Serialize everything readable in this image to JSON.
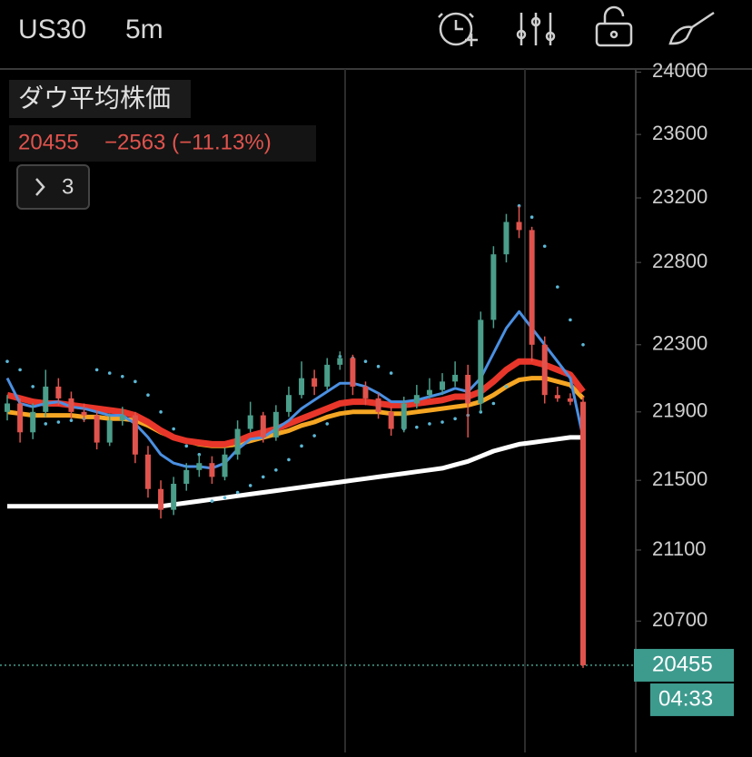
{
  "header": {
    "symbol": "US30",
    "interval": "5m"
  },
  "legend": {
    "name": "ダウ平均株価",
    "last": "20455",
    "change": "−2563 (−11.13%)"
  },
  "button": {
    "label": "3"
  },
  "chart_data": {
    "type": "candlestick",
    "log_scale": true,
    "ylim": [
      19980,
      24020
    ],
    "yticks": [
      20700,
      21100,
      21500,
      21900,
      22300,
      22800,
      23200,
      23600,
      24000
    ],
    "up_color": "#4a9e8a",
    "down_color": "#e0534d",
    "candles": [
      [
        21900,
        22000,
        21850,
        21950
      ],
      [
        21950,
        21980,
        21720,
        21780
      ],
      [
        21780,
        21950,
        21740,
        21900
      ],
      [
        21900,
        22150,
        21870,
        22050
      ],
      [
        22050,
        22100,
        21940,
        21980
      ],
      [
        21980,
        22020,
        21860,
        21900
      ],
      [
        21900,
        21950,
        21840,
        21880
      ],
      [
        21880,
        21910,
        21680,
        21720
      ],
      [
        21720,
        21890,
        21700,
        21850
      ],
      [
        21850,
        21930,
        21820,
        21880
      ],
      [
        21880,
        21900,
        21600,
        21650
      ],
      [
        21650,
        21700,
        21400,
        21450
      ],
      [
        21450,
        21500,
        21280,
        21330
      ],
      [
        21330,
        21520,
        21300,
        21480
      ],
      [
        21480,
        21600,
        21440,
        21560
      ],
      [
        21560,
        21650,
        21520,
        21600
      ],
      [
        21600,
        21640,
        21480,
        21520
      ],
      [
        21520,
        21690,
        21500,
        21650
      ],
      [
        21650,
        21850,
        21620,
        21800
      ],
      [
        21800,
        21960,
        21780,
        21880
      ],
      [
        21880,
        21900,
        21720,
        21750
      ],
      [
        21750,
        21940,
        21730,
        21900
      ],
      [
        21900,
        22050,
        21870,
        22000
      ],
      [
        22000,
        22200,
        21980,
        22100
      ],
      [
        22100,
        22150,
        22000,
        22050
      ],
      [
        22050,
        22220,
        22030,
        22180
      ],
      [
        22180,
        22260,
        22150,
        22220
      ],
      [
        22220,
        22240,
        22000,
        22050
      ],
      [
        22050,
        22080,
        21940,
        21980
      ],
      [
        21980,
        22010,
        21860,
        21900
      ],
      [
        21900,
        21930,
        21760,
        21800
      ],
      [
        21800,
        21990,
        21780,
        21950
      ],
      [
        21950,
        22060,
        21920,
        22000
      ],
      [
        22000,
        22100,
        21980,
        22030
      ],
      [
        22030,
        22130,
        22000,
        22080
      ],
      [
        22080,
        22200,
        22050,
        22120
      ],
      [
        22120,
        22180,
        21750,
        21950
      ],
      [
        21950,
        22500,
        21900,
        22450
      ],
      [
        22450,
        22900,
        22400,
        22850
      ],
      [
        22850,
        23100,
        22800,
        23050
      ],
      [
        23050,
        23150,
        22950,
        23000
      ],
      [
        23000,
        23020,
        22200,
        22300
      ],
      [
        22300,
        22350,
        21950,
        22000
      ],
      [
        22000,
        22050,
        21960,
        21980
      ],
      [
        21980,
        22010,
        21940,
        21960
      ],
      [
        21960,
        21990,
        20440,
        20455
      ]
    ],
    "series": [
      {
        "color": "#ffffff",
        "values": [
          21350,
          21350,
          21350,
          21350,
          21350,
          21350,
          21350,
          21350,
          21350,
          21350,
          21350,
          21350,
          21350,
          21360,
          21370,
          21380,
          21390,
          21400,
          21410,
          21420,
          21430,
          21440,
          21450,
          21460,
          21470,
          21480,
          21490,
          21500,
          21510,
          21520,
          21530,
          21540,
          21550,
          21560,
          21570,
          21590,
          21610,
          21640,
          21670,
          21690,
          21710,
          21720,
          21730,
          21740,
          21750,
          21750
        ]
      },
      {
        "color": "#f5a623",
        "values": [
          21900,
          21890,
          21880,
          21880,
          21880,
          21880,
          21870,
          21870,
          21860,
          21860,
          21850,
          21820,
          21780,
          21750,
          21730,
          21710,
          21700,
          21700,
          21710,
          21730,
          21750,
          21770,
          21790,
          21820,
          21840,
          21870,
          21890,
          21900,
          21900,
          21900,
          21890,
          21890,
          21900,
          21910,
          21920,
          21930,
          21940,
          21960,
          22000,
          22050,
          22090,
          22100,
          22100,
          22080,
          22060,
          21980
        ]
      },
      {
        "color": "#e8362a",
        "values": [
          22000,
          21980,
          21960,
          21950,
          21950,
          21940,
          21930,
          21920,
          21910,
          21900,
          21880,
          21840,
          21790,
          21750,
          21730,
          21720,
          21710,
          21710,
          21730,
          21760,
          21780,
          21800,
          21830,
          21860,
          21890,
          21920,
          21950,
          21960,
          21960,
          21950,
          21940,
          21940,
          21950,
          21960,
          21970,
          21990,
          21990,
          22020,
          22080,
          22150,
          22200,
          22200,
          22180,
          22150,
          22120,
          22020
        ]
      },
      {
        "color": "#4a90e2",
        "values": [
          22100,
          21950,
          21930,
          21950,
          21960,
          21930,
          21920,
          21900,
          21880,
          21880,
          21830,
          21750,
          21650,
          21600,
          21580,
          21580,
          21570,
          21600,
          21680,
          21740,
          21750,
          21800,
          21850,
          21920,
          21970,
          22020,
          22070,
          22070,
          22050,
          22010,
          21960,
          21960,
          21970,
          21990,
          22010,
          22040,
          22020,
          22100,
          22250,
          22400,
          22500,
          22400,
          22300,
          22200,
          22100,
          21750
        ]
      },
      {
        "color": "#5bb8d6",
        "style": "dots",
        "values": [
          22200,
          22150,
          22050,
          21830,
          21840,
          21850,
          21860,
          22150,
          22130,
          22110,
          22080,
          22000,
          21900,
          21800,
          21700,
          21650,
          21380,
          21400,
          21430,
          21470,
          21520,
          21560,
          21620,
          21700,
          21760,
          21830,
          22230,
          22220,
          22200,
          22170,
          22130,
          21800,
          21810,
          21830,
          21840,
          21860,
          21880,
          21900,
          21950,
          22050,
          23150,
          23080,
          22900,
          22650,
          22450,
          22300
        ]
      }
    ],
    "last_price": 20455,
    "countdown": "04:33"
  }
}
